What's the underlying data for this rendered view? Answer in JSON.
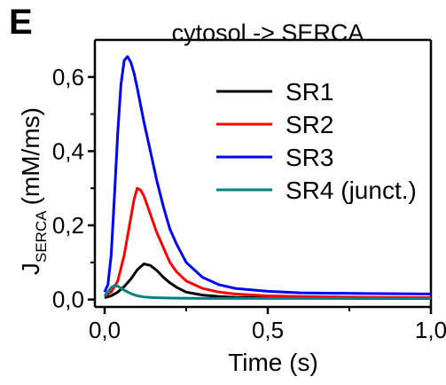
{
  "panel_label": "E",
  "chart_data": {
    "type": "line",
    "title": "cytosol -> SERCA",
    "xlabel": "Time (s)",
    "ylabel": {
      "main": "J",
      "subscript": "SERCA",
      "units": "(mM/ms)"
    },
    "xlim": [
      -0.03,
      1.0
    ],
    "ylim": [
      -0.02,
      0.7
    ],
    "xticks": [
      0.0,
      0.5,
      1.0
    ],
    "xtick_labels": [
      "0,0",
      "0,5",
      "1,0"
    ],
    "yticks": [
      0.0,
      0.2,
      0.4,
      0.6
    ],
    "ytick_labels": [
      "0,0",
      "0,2",
      "0,4",
      "0,6"
    ],
    "grid": false,
    "legend_position": "top-right",
    "series": [
      {
        "name": "SR1",
        "color": "#000000",
        "x": [
          0.0,
          0.02,
          0.04,
          0.06,
          0.08,
          0.1,
          0.12,
          0.14,
          0.16,
          0.18,
          0.2,
          0.22,
          0.25,
          0.3,
          0.35,
          0.4,
          0.5,
          0.6,
          0.8,
          1.0
        ],
        "y": [
          0.005,
          0.01,
          0.02,
          0.035,
          0.055,
          0.08,
          0.096,
          0.092,
          0.078,
          0.06,
          0.045,
          0.033,
          0.02,
          0.012,
          0.008,
          0.006,
          0.005,
          0.004,
          0.003,
          0.003
        ]
      },
      {
        "name": "SR2",
        "color": "#ff0000",
        "x": [
          0.0,
          0.02,
          0.04,
          0.06,
          0.08,
          0.09,
          0.1,
          0.11,
          0.12,
          0.14,
          0.16,
          0.18,
          0.2,
          0.22,
          0.25,
          0.3,
          0.35,
          0.4,
          0.5,
          0.6,
          0.8,
          1.0
        ],
        "y": [
          0.01,
          0.02,
          0.05,
          0.12,
          0.22,
          0.27,
          0.3,
          0.295,
          0.28,
          0.23,
          0.18,
          0.14,
          0.1,
          0.075,
          0.05,
          0.03,
          0.02,
          0.015,
          0.01,
          0.008,
          0.006,
          0.005
        ]
      },
      {
        "name": "SR3",
        "color": "#0000ff",
        "x": [
          0.0,
          0.01,
          0.02,
          0.03,
          0.04,
          0.05,
          0.06,
          0.07,
          0.08,
          0.09,
          0.1,
          0.12,
          0.14,
          0.16,
          0.18,
          0.2,
          0.22,
          0.25,
          0.3,
          0.35,
          0.4,
          0.5,
          0.6,
          0.8,
          1.0
        ],
        "y": [
          0.02,
          0.04,
          0.12,
          0.28,
          0.45,
          0.58,
          0.645,
          0.655,
          0.64,
          0.61,
          0.57,
          0.48,
          0.4,
          0.32,
          0.25,
          0.19,
          0.15,
          0.1,
          0.06,
          0.04,
          0.03,
          0.022,
          0.018,
          0.016,
          0.015
        ]
      },
      {
        "name": "SR4 (junct.)",
        "color": "#008080",
        "x": [
          0.0,
          0.01,
          0.02,
          0.03,
          0.04,
          0.05,
          0.06,
          0.08,
          0.1,
          0.12,
          0.15,
          0.2,
          0.3,
          0.4,
          0.5,
          0.7,
          1.0
        ],
        "y": [
          0.01,
          0.02,
          0.032,
          0.038,
          0.036,
          0.031,
          0.025,
          0.016,
          0.01,
          0.007,
          0.005,
          0.004,
          0.003,
          0.003,
          0.003,
          0.003,
          0.003
        ]
      }
    ]
  }
}
